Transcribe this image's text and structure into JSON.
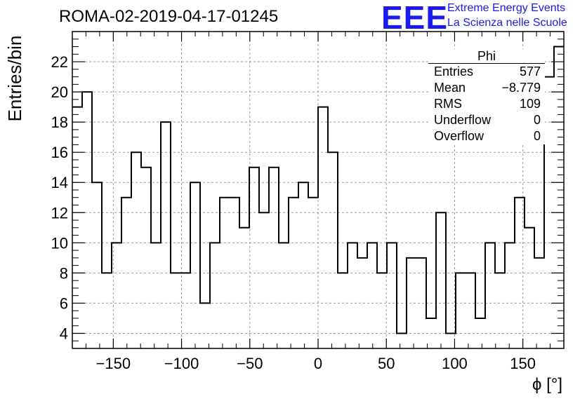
{
  "header": {
    "run_id": "ROMA-02-2019-04-17-01245",
    "logo_text": "EEE",
    "logo_line1": "Extreme Energy Events",
    "logo_line2": "La Scienza nelle Scuole",
    "logo_color": "#1a1aee"
  },
  "stats_box": {
    "name": "Phi",
    "rows": [
      {
        "label": "Entries",
        "value": "577"
      },
      {
        "label": "Mean",
        "value": "−8.779"
      },
      {
        "label": "RMS",
        "value": "109"
      },
      {
        "label": "Underflow",
        "value": "0"
      },
      {
        "label": "Overflow",
        "value": "0"
      }
    ]
  },
  "chart_data": {
    "type": "bar",
    "style": "step-histogram",
    "title": "ROMA-02-2019-04-17-01245",
    "xlabel": "ϕ [°]",
    "ylabel": "Entries/bin",
    "xlim": [
      -180,
      180
    ],
    "ylim": [
      3,
      24
    ],
    "bin_width": 7.2,
    "x_ticks": [
      -150,
      -100,
      -50,
      0,
      50,
      100,
      150
    ],
    "x_tick_labels": [
      "−150",
      "−100",
      "−50",
      "0",
      "50",
      "100",
      "150"
    ],
    "y_ticks": [
      4,
      6,
      8,
      10,
      12,
      14,
      16,
      18,
      20,
      22
    ],
    "y_tick_labels": [
      "4",
      "6",
      "8",
      "10",
      "12",
      "14",
      "16",
      "18",
      "20",
      "22"
    ],
    "grid": true,
    "legend": "stats box top-right",
    "line_color": "#000000",
    "values": [
      19,
      20,
      14,
      8,
      10,
      13,
      16,
      15,
      10,
      18,
      8,
      8,
      14,
      6,
      10,
      13,
      13,
      11,
      15,
      12,
      15,
      10,
      13,
      14,
      13,
      19,
      16,
      8,
      10,
      9,
      10,
      8,
      10,
      4,
      9,
      9,
      5,
      12,
      4,
      8,
      8,
      5,
      10,
      8,
      10,
      13,
      11,
      9,
      21,
      23
    ]
  }
}
